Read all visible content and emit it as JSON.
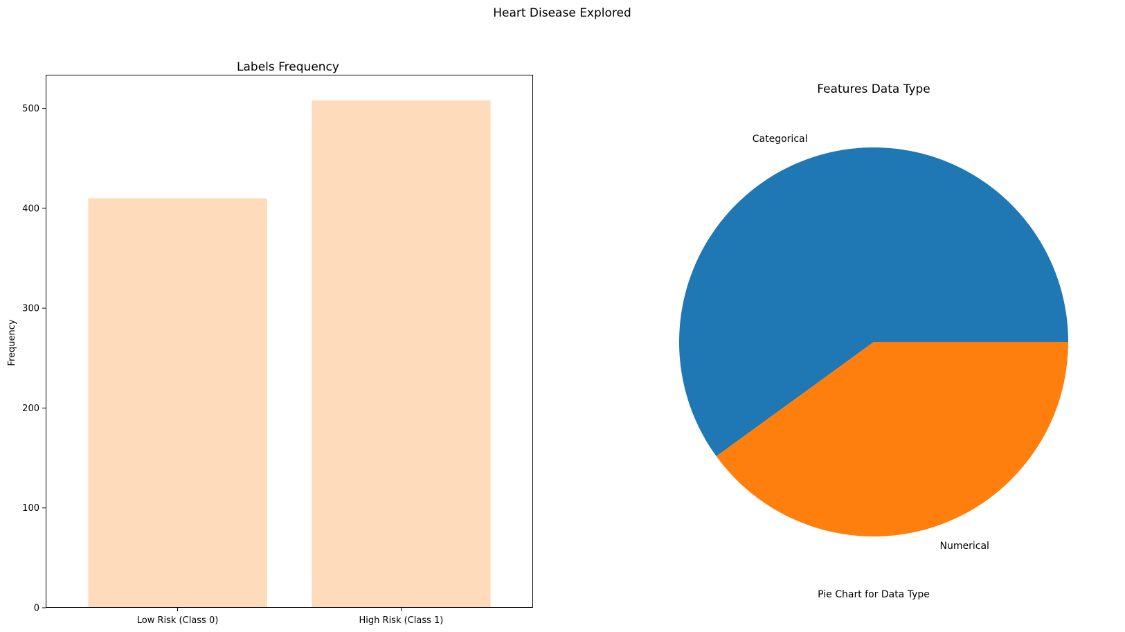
{
  "figure": {
    "suptitle": "Heart Disease Explored"
  },
  "chart_data": [
    {
      "type": "bar",
      "title": "Labels Frequency",
      "xlabel": "",
      "ylabel": "Frequency",
      "categories": [
        "Low Risk (Class 0)",
        "High Risk (Class 1)"
      ],
      "values": [
        410,
        508
      ],
      "ylim": [
        0,
        533
      ],
      "yticks": [
        0,
        100,
        200,
        300,
        400,
        500
      ],
      "bar_color": "#fddbbb",
      "grid": false
    },
    {
      "type": "pie",
      "title": "Features Data Type",
      "xlabel": "Pie Chart for Data Type",
      "labels": [
        "Categorical",
        "Numerical"
      ],
      "values": [
        0.6,
        0.4
      ],
      "colors": [
        "#1f77b4",
        "#ff7f0e"
      ],
      "start_angle": 0,
      "direction": "counterclockwise"
    }
  ]
}
